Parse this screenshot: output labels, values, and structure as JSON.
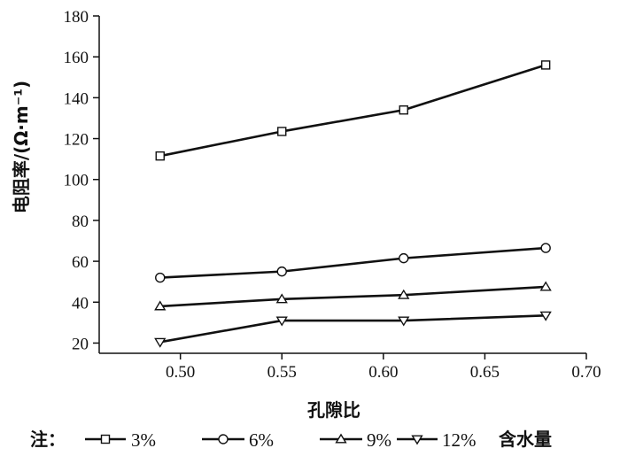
{
  "chart_data": {
    "type": "line",
    "x": [
      0.49,
      0.55,
      0.61,
      0.68
    ],
    "xlim": [
      0.46,
      0.7
    ],
    "ylim": [
      15,
      180
    ],
    "xticks": [
      "0.50",
      "0.55",
      "0.60",
      "0.65",
      "0.70"
    ],
    "xtick_values": [
      0.5,
      0.55,
      0.6,
      0.65,
      0.7
    ],
    "yticks": [
      "20",
      "40",
      "60",
      "80",
      "100",
      "120",
      "140",
      "160",
      "180"
    ],
    "ytick_values": [
      20,
      40,
      60,
      80,
      100,
      120,
      140,
      160,
      180
    ],
    "xlabel": "孔隙比",
    "ylabel": "电阻率/(Ω·m⁻¹)",
    "grid": false,
    "legend_position": "bottom",
    "legend_prefix": "注：",
    "legend_suffix": "含水量",
    "series": [
      {
        "name": "3%",
        "marker": "square",
        "values": [
          111.5,
          123.5,
          134,
          156
        ]
      },
      {
        "name": "6%",
        "marker": "circle",
        "values": [
          52,
          55,
          61.5,
          66.5
        ]
      },
      {
        "name": "9%",
        "marker": "triangle-up",
        "values": [
          38,
          41.5,
          43.5,
          47.5
        ]
      },
      {
        "name": "12%",
        "marker": "triangle-down",
        "values": [
          20.5,
          31,
          31,
          33.5
        ]
      }
    ],
    "line_color": "#111111",
    "marker_fill": "#ffffff"
  }
}
